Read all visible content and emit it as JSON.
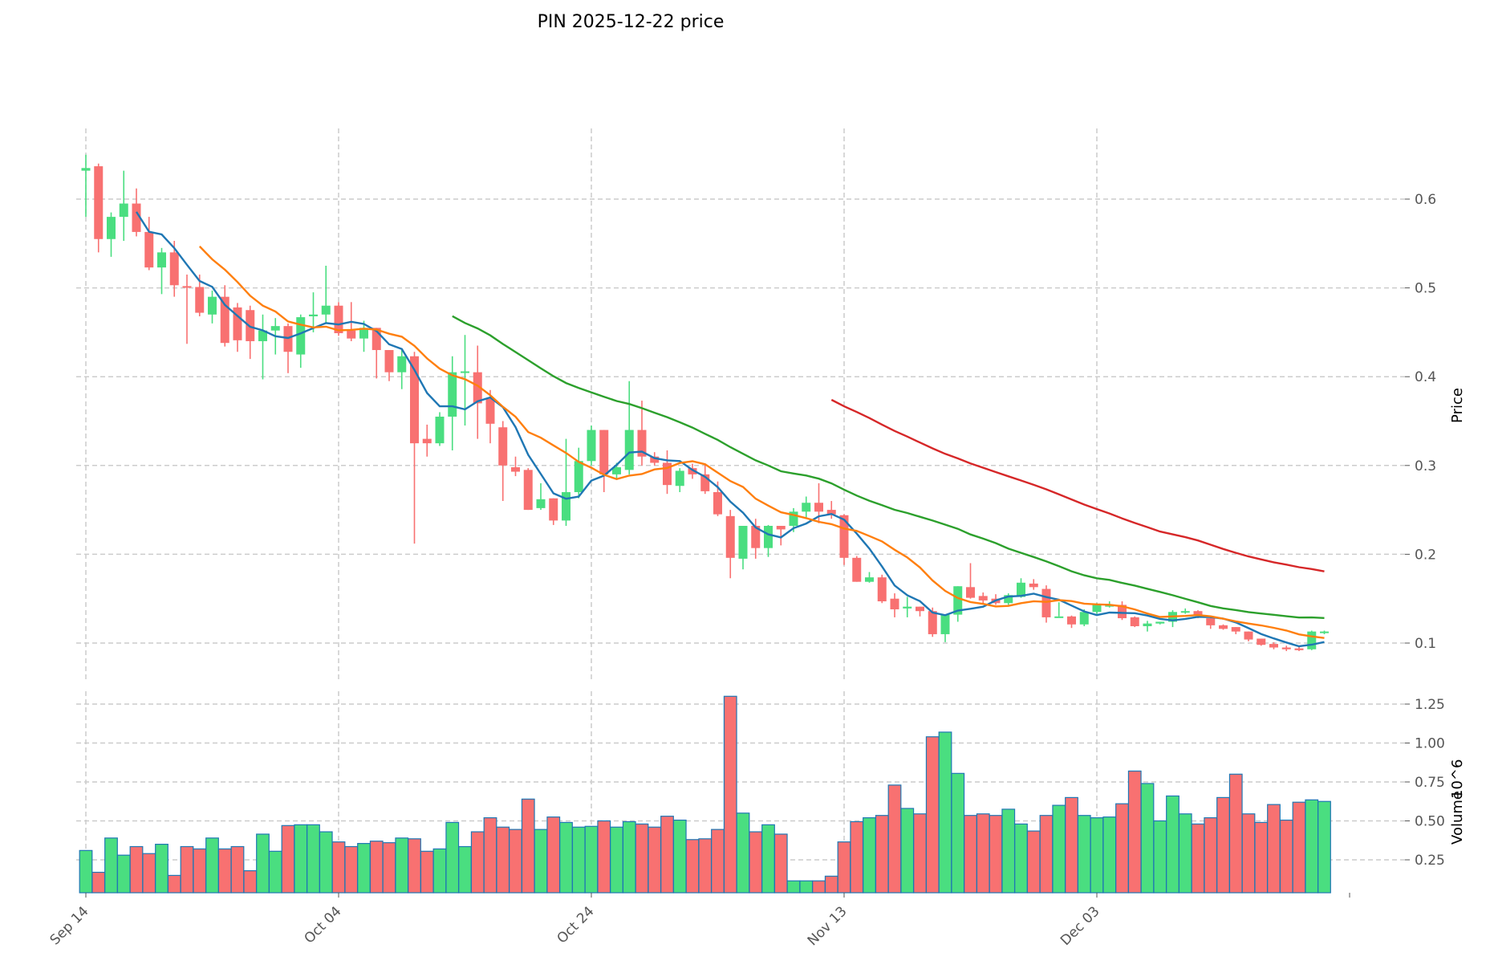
{
  "chart_data": {
    "type": "candlestick",
    "title": "PIN  2025-12-22  price",
    "start_date": "2025-09-14",
    "x_tick_labels": [
      "Sep 14",
      "Oct 04",
      "Oct 24",
      "Nov 13",
      "Dec 03"
    ],
    "price_panel": {
      "ylabel": "Price",
      "yticks": [
        0.1,
        0.2,
        0.3,
        0.4,
        0.5,
        0.6
      ],
      "ytick_labels": [
        "0.1",
        "0.2",
        "0.3",
        "0.4",
        "0.5",
        "0.6"
      ],
      "ylim": [
        0.05,
        0.68
      ],
      "moving_averages": [
        {
          "window": 5,
          "color": "#1f77b4"
        },
        {
          "window": 10,
          "color": "#ff7f0e"
        },
        {
          "window": 30,
          "color": "#2ca02c"
        },
        {
          "window": 60,
          "color": "#d62728"
        }
      ],
      "ohlc": [
        [
          0.632,
          0.65,
          0.58,
          0.635
        ],
        [
          0.637,
          0.64,
          0.54,
          0.555
        ],
        [
          0.555,
          0.585,
          0.535,
          0.58
        ],
        [
          0.58,
          0.632,
          0.553,
          0.595
        ],
        [
          0.595,
          0.612,
          0.558,
          0.563
        ],
        [
          0.563,
          0.58,
          0.52,
          0.523
        ],
        [
          0.523,
          0.545,
          0.493,
          0.54
        ],
        [
          0.54,
          0.553,
          0.49,
          0.503
        ],
        [
          0.502,
          0.515,
          0.437,
          0.501
        ],
        [
          0.501,
          0.515,
          0.468,
          0.472
        ],
        [
          0.47,
          0.497,
          0.46,
          0.49
        ],
        [
          0.49,
          0.503,
          0.434,
          0.438
        ],
        [
          0.478,
          0.483,
          0.428,
          0.441
        ],
        [
          0.475,
          0.48,
          0.42,
          0.44
        ],
        [
          0.44,
          0.47,
          0.397,
          0.452
        ],
        [
          0.452,
          0.466,
          0.425,
          0.457
        ],
        [
          0.457,
          0.46,
          0.404,
          0.428
        ],
        [
          0.425,
          0.47,
          0.41,
          0.467
        ],
        [
          0.468,
          0.495,
          0.45,
          0.47
        ],
        [
          0.47,
          0.525,
          0.46,
          0.48
        ],
        [
          0.48,
          0.484,
          0.446,
          0.449
        ],
        [
          0.452,
          0.484,
          0.44,
          0.443
        ],
        [
          0.443,
          0.463,
          0.428,
          0.455
        ],
        [
          0.455,
          0.455,
          0.398,
          0.43
        ],
        [
          0.43,
          0.43,
          0.395,
          0.405
        ],
        [
          0.405,
          0.43,
          0.386,
          0.423
        ],
        [
          0.423,
          0.428,
          0.212,
          0.325
        ],
        [
          0.33,
          0.346,
          0.31,
          0.325
        ],
        [
          0.325,
          0.36,
          0.322,
          0.355
        ],
        [
          0.355,
          0.423,
          0.317,
          0.405
        ],
        [
          0.405,
          0.447,
          0.345,
          0.406
        ],
        [
          0.405,
          0.435,
          0.33,
          0.37
        ],
        [
          0.375,
          0.385,
          0.325,
          0.347
        ],
        [
          0.343,
          0.35,
          0.26,
          0.3
        ],
        [
          0.298,
          0.31,
          0.288,
          0.293
        ],
        [
          0.295,
          0.297,
          0.25,
          0.25
        ],
        [
          0.252,
          0.28,
          0.25,
          0.262
        ],
        [
          0.263,
          0.263,
          0.233,
          0.238
        ],
        [
          0.238,
          0.33,
          0.232,
          0.27
        ],
        [
          0.27,
          0.32,
          0.263,
          0.305
        ],
        [
          0.305,
          0.345,
          0.3,
          0.34
        ],
        [
          0.34,
          0.34,
          0.27,
          0.29
        ],
        [
          0.29,
          0.303,
          0.284,
          0.298
        ],
        [
          0.295,
          0.395,
          0.29,
          0.34
        ],
        [
          0.34,
          0.373,
          0.3,
          0.31
        ],
        [
          0.31,
          0.315,
          0.3,
          0.303
        ],
        [
          0.303,
          0.317,
          0.268,
          0.278
        ],
        [
          0.277,
          0.297,
          0.27,
          0.294
        ],
        [
          0.297,
          0.302,
          0.285,
          0.29
        ],
        [
          0.29,
          0.302,
          0.268,
          0.271
        ],
        [
          0.27,
          0.282,
          0.243,
          0.245
        ],
        [
          0.243,
          0.25,
          0.173,
          0.196
        ],
        [
          0.195,
          0.232,
          0.183,
          0.232
        ],
        [
          0.232,
          0.24,
          0.195,
          0.207
        ],
        [
          0.207,
          0.233,
          0.197,
          0.232
        ],
        [
          0.232,
          0.232,
          0.21,
          0.228
        ],
        [
          0.232,
          0.252,
          0.225,
          0.248
        ],
        [
          0.248,
          0.265,
          0.24,
          0.258
        ],
        [
          0.258,
          0.28,
          0.235,
          0.248
        ],
        [
          0.25,
          0.26,
          0.24,
          0.245
        ],
        [
          0.244,
          0.245,
          0.188,
          0.196
        ],
        [
          0.196,
          0.198,
          0.169,
          0.169
        ],
        [
          0.169,
          0.18,
          0.168,
          0.174
        ],
        [
          0.174,
          0.177,
          0.145,
          0.147
        ],
        [
          0.15,
          0.156,
          0.129,
          0.138
        ],
        [
          0.139,
          0.152,
          0.129,
          0.141
        ],
        [
          0.141,
          0.141,
          0.13,
          0.136
        ],
        [
          0.136,
          0.14,
          0.107,
          0.11
        ],
        [
          0.11,
          0.132,
          0.101,
          0.132
        ],
        [
          0.132,
          0.164,
          0.124,
          0.164
        ],
        [
          0.163,
          0.19,
          0.15,
          0.151
        ],
        [
          0.153,
          0.157,
          0.145,
          0.148
        ],
        [
          0.15,
          0.155,
          0.143,
          0.145
        ],
        [
          0.145,
          0.156,
          0.143,
          0.154
        ],
        [
          0.152,
          0.173,
          0.151,
          0.168
        ],
        [
          0.167,
          0.172,
          0.16,
          0.163
        ],
        [
          0.161,
          0.165,
          0.123,
          0.129
        ],
        [
          0.13,
          0.146,
          0.13,
          0.13
        ],
        [
          0.13,
          0.131,
          0.117,
          0.121
        ],
        [
          0.121,
          0.138,
          0.119,
          0.135
        ],
        [
          0.135,
          0.145,
          0.133,
          0.143
        ],
        [
          0.141,
          0.147,
          0.14,
          0.143
        ],
        [
          0.143,
          0.147,
          0.126,
          0.128
        ],
        [
          0.129,
          0.13,
          0.118,
          0.119
        ],
        [
          0.119,
          0.125,
          0.113,
          0.122
        ],
        [
          0.122,
          0.124,
          0.121,
          0.124
        ],
        [
          0.124,
          0.137,
          0.118,
          0.135
        ],
        [
          0.135,
          0.139,
          0.133,
          0.136
        ],
        [
          0.136,
          0.137,
          0.128,
          0.131
        ],
        [
          0.128,
          0.13,
          0.116,
          0.12
        ],
        [
          0.12,
          0.121,
          0.115,
          0.116
        ],
        [
          0.118,
          0.118,
          0.11,
          0.113
        ],
        [
          0.113,
          0.113,
          0.102,
          0.104
        ],
        [
          0.105,
          0.105,
          0.097,
          0.098
        ],
        [
          0.099,
          0.101,
          0.093,
          0.095
        ],
        [
          0.095,
          0.097,
          0.091,
          0.093
        ],
        [
          0.094,
          0.096,
          0.091,
          0.092
        ],
        [
          0.093,
          0.114,
          0.092,
          0.113
        ],
        [
          0.113,
          0.114,
          0.11,
          0.113
        ]
      ]
    },
    "volume_panel": {
      "ylabel": "Volume",
      "yunit": "10^6",
      "yticks": [
        0.25,
        0.5,
        0.75,
        1.0,
        1.25
      ],
      "ytick_labels": [
        "0.25",
        "0.50",
        "0.75",
        "1.00",
        "1.25"
      ],
      "ylim": [
        0.04,
        1.33
      ],
      "values": [
        0.31,
        0.17,
        0.39,
        0.28,
        0.335,
        0.29,
        0.35,
        0.15,
        0.335,
        0.32,
        0.39,
        0.32,
        0.335,
        0.18,
        0.415,
        0.305,
        0.47,
        0.475,
        0.475,
        0.43,
        0.365,
        0.335,
        0.355,
        0.37,
        0.36,
        0.39,
        0.385,
        0.305,
        0.32,
        0.49,
        0.335,
        0.43,
        0.52,
        0.46,
        0.445,
        0.64,
        0.445,
        0.525,
        0.49,
        0.46,
        0.465,
        0.5,
        0.46,
        0.495,
        0.48,
        0.46,
        0.53,
        0.505,
        0.38,
        0.385,
        0.445,
        1.3,
        0.55,
        0.43,
        0.475,
        0.415,
        0.115,
        0.115,
        0.115,
        0.145,
        0.365,
        0.495,
        0.52,
        0.535,
        0.73,
        0.58,
        0.545,
        1.04,
        1.07,
        0.805,
        0.535,
        0.545,
        0.535,
        0.575,
        0.48,
        0.435,
        0.535,
        0.6,
        0.65,
        0.535,
        0.52,
        0.525,
        0.61,
        0.82,
        0.74,
        0.5,
        0.66,
        0.545,
        0.48,
        0.52,
        0.65,
        0.8,
        0.545,
        0.49,
        0.605,
        0.505,
        0.62,
        0.635,
        0.625
      ]
    },
    "colors": {
      "up": "#4ade80",
      "down": "#f87171",
      "volume_edge": "#1f77b4",
      "grid": "#cccccc"
    }
  }
}
